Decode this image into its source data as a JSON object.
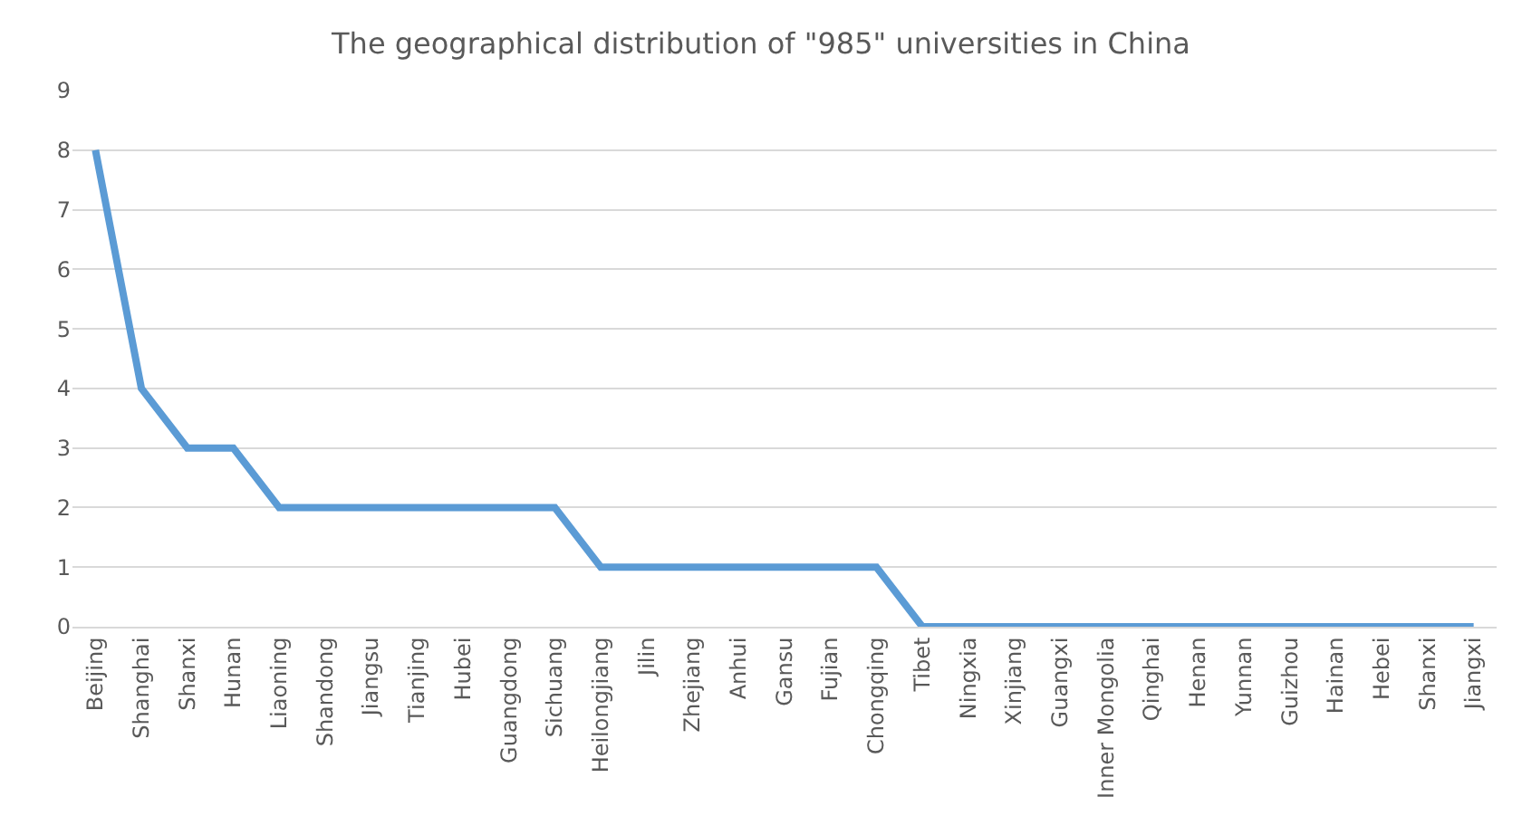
{
  "chart_data": {
    "type": "line",
    "title": "The geographical distribution of \"985\" universities in China",
    "categories": [
      "Beijing",
      "Shanghai",
      "Shanxi",
      "Hunan",
      "Liaoning",
      "Shandong",
      "Jiangsu",
      "Tianjing",
      "Hubei",
      "Guangdong",
      "Sichuang",
      "Heilongjiang",
      "Jilin",
      "Zhejiang",
      "Anhui",
      "Gansu",
      "Fujian",
      "Chongqing",
      "Tibet",
      "Ningxia",
      "Xinjiang",
      "Guangxi",
      "Inner Mongolia",
      "Qinghai",
      "Henan",
      "Yunnan",
      "Guizhou",
      "Hainan",
      "Hebei",
      "Shanxi",
      "Jiangxi"
    ],
    "series": [
      {
        "color": "#5b9bd5",
        "values": [
          8,
          4,
          3,
          3,
          2,
          2,
          2,
          2,
          2,
          2,
          2,
          1,
          1,
          1,
          1,
          1,
          1,
          1,
          0,
          0,
          0,
          0,
          0,
          0,
          0,
          0,
          0,
          0,
          0,
          0,
          0
        ]
      }
    ],
    "ylim": [
      0,
      9
    ],
    "yticks": [
      0,
      1,
      2,
      3,
      4,
      5,
      6,
      7,
      8,
      9
    ],
    "grid": "y",
    "legend": false,
    "marker": "none",
    "line_style": "solid"
  }
}
